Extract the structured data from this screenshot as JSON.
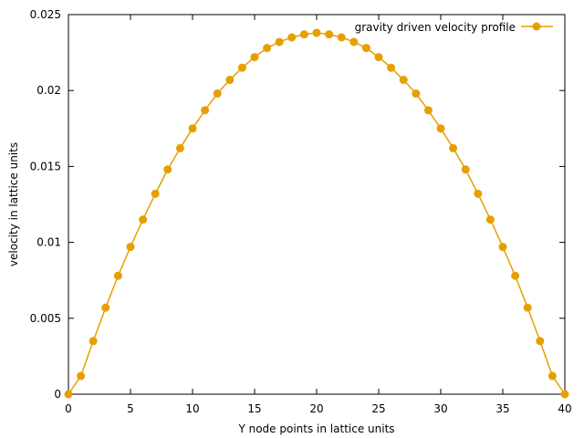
{
  "chart_data": {
    "type": "line",
    "xlabel": "Y node points in lattice units",
    "ylabel": "velocity in lattice units",
    "xlim": [
      0,
      40
    ],
    "ylim": [
      0,
      0.025
    ],
    "x_ticks": [
      "0",
      "5",
      "10",
      "15",
      "20",
      "25",
      "30",
      "35",
      "40"
    ],
    "y_ticks": [
      "0",
      "0.005",
      "0.01",
      "0.015",
      "0.02",
      "0.025"
    ],
    "grid": false,
    "legend_position": "top-right",
    "series": [
      {
        "name": "gravity driven velocity profile",
        "color": "#e69f00",
        "marker": "circle",
        "x": [
          0,
          1,
          2,
          3,
          4,
          5,
          6,
          7,
          8,
          9,
          10,
          11,
          12,
          13,
          14,
          15,
          16,
          17,
          18,
          19,
          20,
          21,
          22,
          23,
          24,
          25,
          26,
          27,
          28,
          29,
          30,
          31,
          32,
          33,
          34,
          35,
          36,
          37,
          38,
          39,
          40
        ],
        "values": [
          0.0,
          0.0012,
          0.0035,
          0.0057,
          0.0078,
          0.0097,
          0.0115,
          0.0132,
          0.0148,
          0.0162,
          0.0175,
          0.0187,
          0.0198,
          0.0207,
          0.0215,
          0.0222,
          0.0228,
          0.0232,
          0.0235,
          0.0237,
          0.0238,
          0.0237,
          0.0235,
          0.0232,
          0.0228,
          0.0222,
          0.0215,
          0.0207,
          0.0198,
          0.0187,
          0.0175,
          0.0162,
          0.0148,
          0.0132,
          0.0115,
          0.0097,
          0.0078,
          0.0057,
          0.0035,
          0.0012,
          0.0
        ]
      }
    ]
  }
}
